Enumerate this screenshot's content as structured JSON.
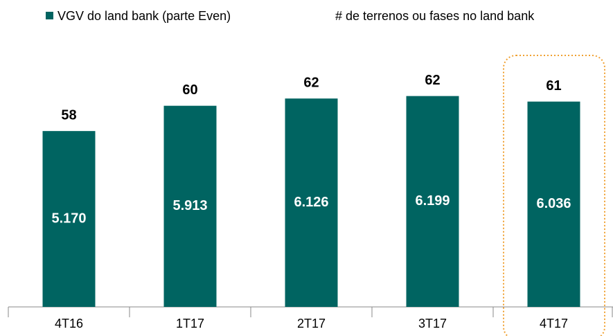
{
  "chart_data": {
    "type": "bar",
    "categories": [
      "4T16",
      "1T17",
      "2T17",
      "3T17",
      "4T17"
    ],
    "series": [
      {
        "name": "VGV do land bank (parte Even)",
        "color": "#006461",
        "values": [
          5170,
          5913,
          6126,
          6199,
          6036
        ],
        "value_labels": [
          "5.170",
          "5.913",
          "6.126",
          "6.199",
          "6.036"
        ]
      },
      {
        "name": "# de terrenos ou fases no land bank",
        "values": [
          58,
          60,
          62,
          62,
          61
        ]
      }
    ]
  }
}
